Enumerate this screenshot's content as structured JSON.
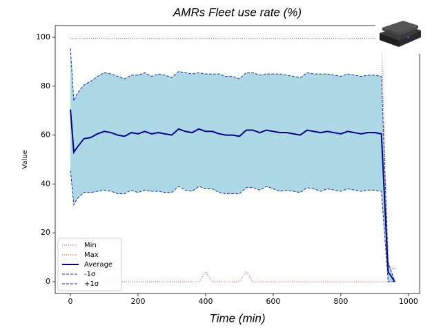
{
  "chart_data": {
    "type": "line",
    "title": "AMRs Fleet use rate (%)",
    "x_label": "Time (min)",
    "y_label": "Value",
    "x": [
      0,
      10,
      20,
      40,
      60,
      80,
      100,
      120,
      140,
      160,
      180,
      200,
      220,
      240,
      260,
      280,
      300,
      320,
      340,
      360,
      380,
      400,
      420,
      440,
      460,
      480,
      500,
      520,
      540,
      560,
      580,
      600,
      620,
      640,
      660,
      680,
      700,
      720,
      740,
      760,
      780,
      800,
      820,
      840,
      860,
      880,
      900,
      920,
      940,
      960
    ],
    "series": [
      {
        "name": "Min",
        "color": "#e8302a",
        "style": "dotted",
        "width": 1,
        "values": [
          0,
          0,
          0,
          0,
          0,
          0,
          0,
          0,
          0,
          0,
          0,
          0,
          0,
          0,
          0,
          0,
          0,
          0,
          0,
          0,
          0,
          4,
          0,
          0,
          0,
          0,
          0,
          4,
          0,
          0,
          0,
          0,
          0,
          0,
          0,
          0,
          0,
          0,
          0,
          0,
          0,
          0,
          0,
          0,
          0,
          0,
          0,
          0,
          0,
          0
        ]
      },
      {
        "name": "Max",
        "color": "#e8302a",
        "style": "dotted",
        "width": 1,
        "values": [
          99.5,
          99.5,
          99.5,
          99.5,
          99.5,
          99.5,
          99.5,
          99.5,
          99.5,
          99.5,
          99.5,
          99.5,
          99.5,
          99.5,
          99.5,
          99.5,
          99.5,
          99.5,
          99.5,
          99.5,
          99.5,
          99.5,
          99.5,
          99.5,
          99.5,
          99.5,
          99.5,
          99.5,
          99.5,
          99.5,
          99.5,
          99.5,
          99.5,
          99.5,
          99.5,
          99.5,
          99.5,
          99.5,
          99.5,
          99.5,
          99.5,
          99.5,
          99.5,
          99.5,
          99.5,
          99.5,
          99.5,
          99.5,
          5.5,
          5.5
        ]
      },
      {
        "name": "Average",
        "color": "#00008b",
        "style": "solid",
        "width": 2,
        "values": [
          70.5,
          53,
          55,
          58.5,
          59,
          60.5,
          61.5,
          61,
          60,
          59.5,
          61,
          60.5,
          61.5,
          60.5,
          61,
          60.5,
          60,
          62.5,
          61.5,
          61,
          62.5,
          61.5,
          61.5,
          60.5,
          60,
          60,
          59.5,
          62,
          62,
          61,
          62,
          61.5,
          61,
          61,
          60.5,
          60,
          62,
          61.5,
          61,
          61.5,
          61,
          60.5,
          61.5,
          61,
          60.5,
          61,
          61,
          60.5,
          4,
          0
        ]
      },
      {
        "name": "-1σ",
        "color": "#1a2fa0",
        "style": "dashed",
        "width": 1,
        "values": [
          45.5,
          31.5,
          34,
          36.5,
          36.5,
          37,
          37.5,
          37,
          36,
          36,
          37.5,
          36.5,
          37.5,
          37,
          37,
          36.5,
          36.5,
          39,
          37.5,
          37,
          39,
          38,
          38,
          36.5,
          36,
          36,
          36,
          38.5,
          38.5,
          37.5,
          39,
          38,
          37,
          37.5,
          37,
          36.5,
          38.5,
          38,
          37,
          38,
          37.5,
          37,
          38,
          37.5,
          37,
          37.5,
          37.5,
          37,
          0,
          0
        ]
      },
      {
        "name": "+1σ",
        "color": "#1a2fa0",
        "style": "dashed",
        "width": 1,
        "values": [
          95.5,
          74,
          77,
          80.5,
          82,
          84,
          85.5,
          85,
          84,
          83,
          84.5,
          84.5,
          85.5,
          84,
          85,
          84.5,
          83.5,
          86,
          85.5,
          85,
          85.5,
          85,
          85,
          85,
          84,
          84,
          83,
          85.5,
          85.5,
          84.5,
          85,
          85,
          85,
          84.5,
          84,
          83.5,
          85.5,
          85,
          85,
          85,
          84.5,
          84,
          85,
          84.5,
          84,
          84.5,
          84.5,
          84,
          8,
          0
        ]
      }
    ],
    "band_color": "#add8e6",
    "xlim": [
      -45,
      1033
    ],
    "ylim": [
      -4.8,
      104.8
    ],
    "xticks": [
      0,
      200,
      400,
      600,
      800,
      1000
    ],
    "yticks": [
      0,
      20,
      40,
      60,
      80,
      100
    ],
    "grid": false,
    "legend": "lower left"
  }
}
